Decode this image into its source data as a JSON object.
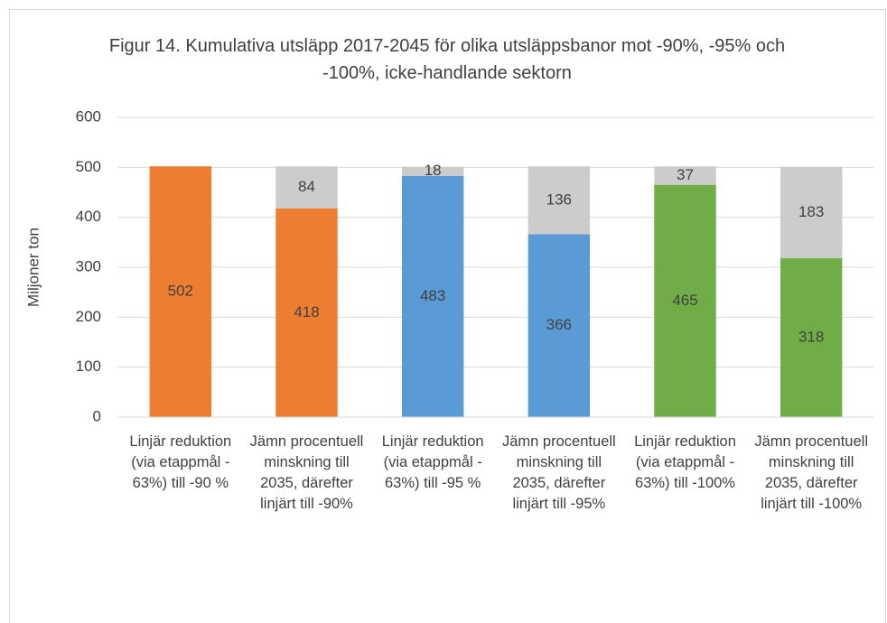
{
  "chart_data": {
    "type": "stacked_bar",
    "title": "Figur 14. Kumulativa utsläpp 2017-2045 för olika utsläppsbanor mot -90%, -95% och -100%, icke-handlande sektorn",
    "y_label": "Miljoner ton",
    "categories": [
      "Linjär reduktion (via etappmål - 63%) till -90 %",
      "Jämn procentuell minskning till 2035, därefter linjärt till -90%",
      "Linjär reduktion (via etappmål - 63%) till -95 %",
      "Jämn procentuell minskning till 2035, därefter linjärt till -95%",
      "Linjär reduktion (via etappmål - 63%) till -100%",
      "Jämn procentuell minskning till 2035, därefter linjärt till -100%"
    ],
    "series": [
      {
        "colors": [
          "#ed7d31",
          "#ed7d31",
          "#5b9bd5",
          "#5b9bd5",
          "#70ad47",
          "#70ad47"
        ],
        "values": [
          502,
          418,
          483,
          366,
          465,
          318
        ]
      },
      {
        "color": "#cccccc",
        "values": [
          null,
          84,
          18,
          136,
          37,
          183
        ]
      }
    ],
    "ylim": [
      0,
      600
    ],
    "yticks": [
      0,
      100,
      200,
      300,
      400,
      500,
      600
    ],
    "grid": true
  }
}
